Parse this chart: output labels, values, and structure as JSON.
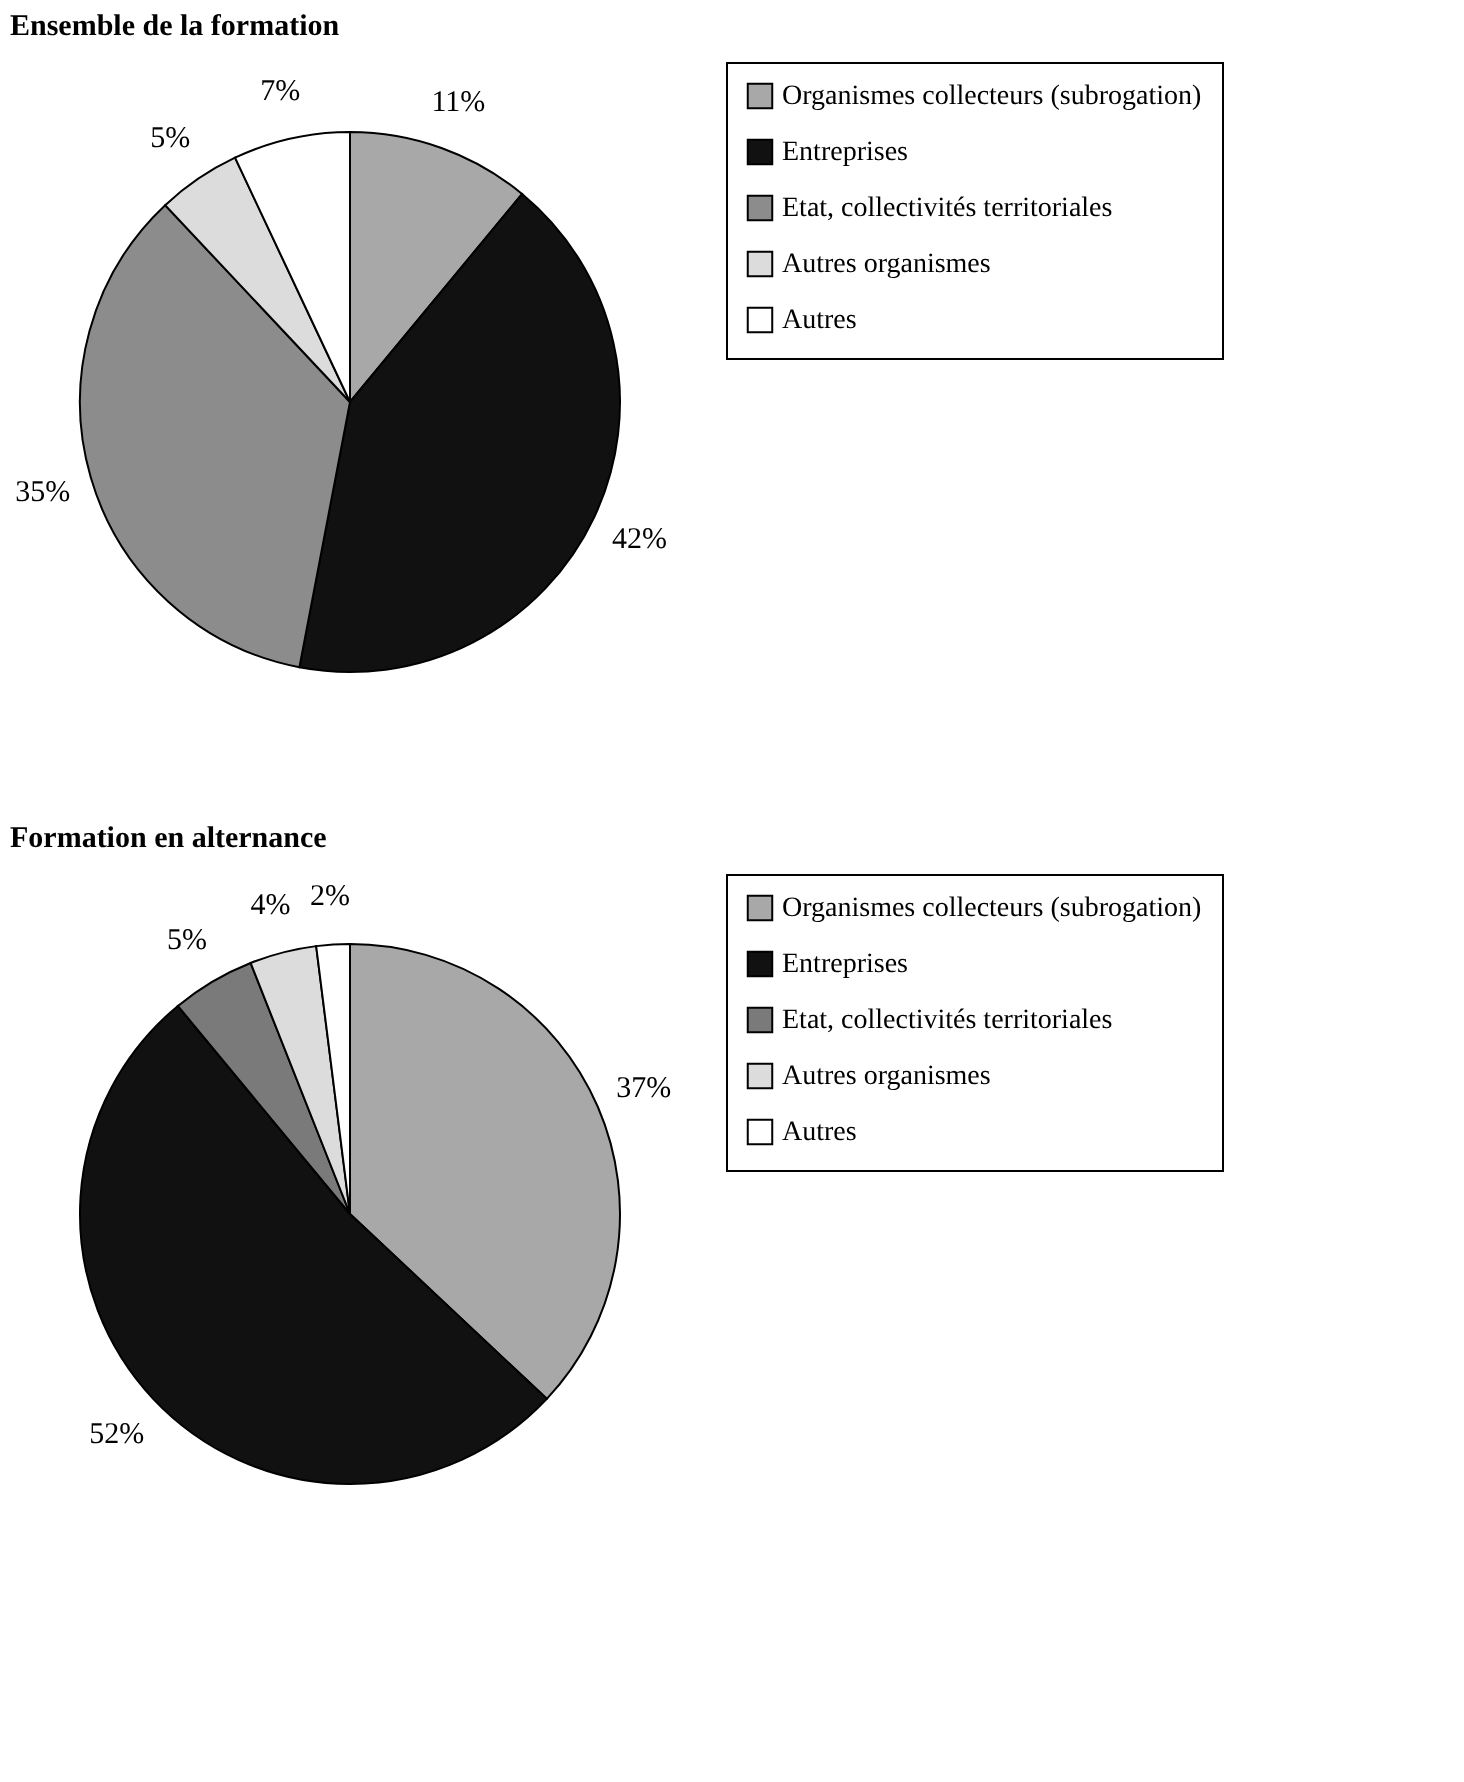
{
  "chart_data": [
    {
      "type": "pie",
      "title": "Ensemble de la formation",
      "categories": [
        "Organismes collecteurs (subrogation)",
        "Entreprises",
        "Etat, collectivités territoriales",
        "Autres organismes",
        "Autres"
      ],
      "values": [
        11,
        42,
        35,
        5,
        7
      ],
      "value_labels": [
        "11%",
        "42%",
        "35%",
        "5%",
        "7%"
      ],
      "colors": [
        "#a8a8a8",
        "#111111",
        "#8c8c8c",
        "#dcdcdc",
        "#ffffff"
      ],
      "legend": "right"
    },
    {
      "type": "pie",
      "title": "Formation en alternance",
      "categories": [
        "Organismes collecteurs (subrogation)",
        "Entreprises",
        "Etat, collectivités territoriales",
        "Autres organismes",
        "Autres"
      ],
      "values": [
        37,
        52,
        5,
        4,
        2
      ],
      "value_labels": [
        "37%",
        "52%",
        "5%",
        "4%",
        "2%"
      ],
      "colors": [
        "#a8a8a8",
        "#111111",
        "#7a7a7a",
        "#dcdcdc",
        "#ffffff"
      ],
      "legend": "right"
    }
  ]
}
